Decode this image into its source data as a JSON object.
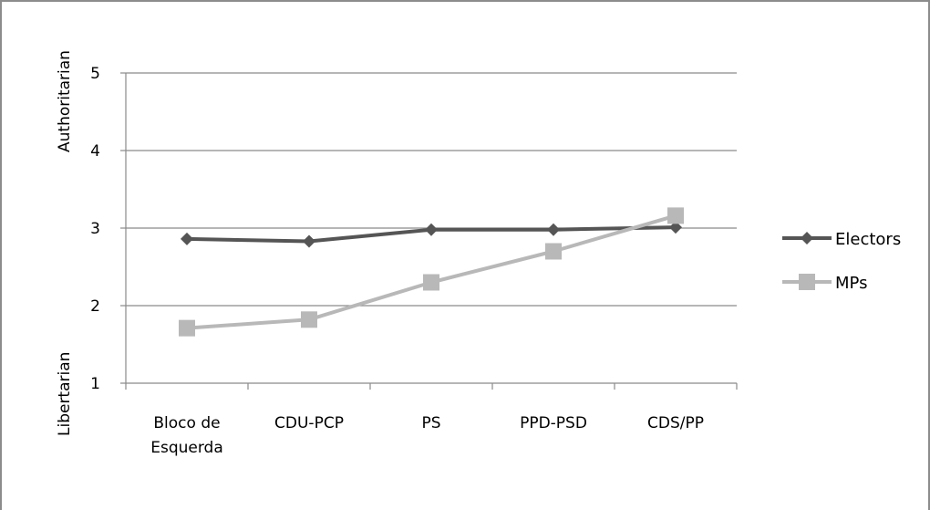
{
  "chart_data": {
    "type": "line",
    "categories": [
      [
        "Bloco de",
        "Esquerda"
      ],
      [
        "CDU-PCP"
      ],
      [
        "PS"
      ],
      [
        "PPD-PSD"
      ],
      [
        "CDS/PP"
      ]
    ],
    "series": [
      {
        "name": "Electors",
        "values": [
          2.86,
          2.83,
          2.98,
          2.98,
          3.01
        ],
        "color": "#555555",
        "marker": "diamond"
      },
      {
        "name": "MPs",
        "values": [
          1.71,
          1.82,
          2.3,
          2.7,
          3.16
        ],
        "color": "#b8b8b8",
        "marker": "square"
      }
    ],
    "ylim": [
      1,
      5
    ],
    "yticks": [
      "1",
      "2",
      "3",
      "4",
      "5"
    ],
    "y_annotations": {
      "top": "Authoritarian",
      "bottom": "Libertarian"
    },
    "grid": true,
    "legend_position": "right"
  }
}
